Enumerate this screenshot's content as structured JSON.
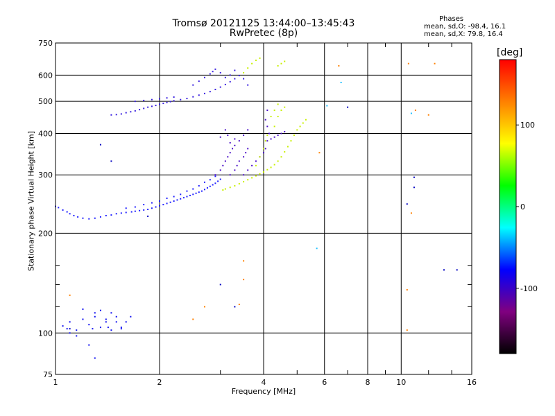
{
  "chart_data": {
    "type": "scatter",
    "title": "Tromsø 20121125 13:44:00–13:45:43",
    "subtitle": "RwPretec (8p)",
    "xlabel": "Frequency [MHz]",
    "ylabel": "Stationary phase Virtual Height [km]",
    "x_scale": "log",
    "y_scale": "log",
    "xlim": [
      1,
      16
    ],
    "ylim": [
      75,
      750
    ],
    "x_ticks": [
      1,
      2,
      4,
      6,
      8,
      10,
      16
    ],
    "x_tick_labels": [
      "1",
      "2",
      "4",
      "6",
      "8",
      "10",
      "16"
    ],
    "x_minor_ticks": [
      3,
      5,
      7,
      9,
      12,
      14
    ],
    "y_ticks": [
      75,
      100,
      200,
      300,
      400,
      500,
      600,
      750
    ],
    "y_tick_labels": [
      "75",
      "100",
      "200",
      "300",
      "400",
      "500",
      "600",
      "750"
    ],
    "y_minor_ticks": [
      120,
      140,
      160
    ],
    "grid": true,
    "phase_stats": {
      "title": "Phases",
      "o_line": "mean, sd,O: -98.4, 16.1",
      "x_line": "mean, sd,X:  79.8, 16.4"
    },
    "colorbar": {
      "unit": "[deg]",
      "ticks": [
        "100",
        "0",
        "-100"
      ],
      "tick_values": [
        100,
        0,
        -100
      ],
      "range": [
        -180,
        180
      ],
      "colors": [
        "#000000",
        "#800080",
        "#0000ff",
        "#00ffff",
        "#00ff00",
        "#ffff00",
        "#ff8000",
        "#ff0000"
      ]
    },
    "series": [
      {
        "color": "#2020ff",
        "points": [
          [
            1.0,
            241
          ],
          [
            1.02,
            239
          ],
          [
            1.05,
            235
          ],
          [
            1.08,
            232
          ],
          [
            1.1,
            229
          ],
          [
            1.13,
            226
          ],
          [
            1.16,
            224
          ],
          [
            1.2,
            222
          ],
          [
            1.25,
            221
          ],
          [
            1.3,
            222
          ],
          [
            1.35,
            224
          ],
          [
            1.4,
            226
          ],
          [
            1.45,
            227
          ],
          [
            1.5,
            229
          ],
          [
            1.55,
            230
          ],
          [
            1.6,
            231
          ],
          [
            1.66,
            232
          ],
          [
            1.7,
            233
          ],
          [
            1.75,
            234
          ],
          [
            1.8,
            235
          ],
          [
            1.85,
            236
          ],
          [
            1.9,
            238
          ],
          [
            1.95,
            240
          ],
          [
            2.0,
            242
          ],
          [
            2.05,
            244
          ],
          [
            2.1,
            246
          ],
          [
            2.15,
            248
          ],
          [
            2.2,
            250
          ],
          [
            2.25,
            252
          ],
          [
            2.3,
            254
          ],
          [
            2.35,
            256
          ],
          [
            2.4,
            258
          ],
          [
            2.45,
            260
          ],
          [
            2.5,
            262
          ],
          [
            2.55,
            264
          ],
          [
            2.6,
            266
          ],
          [
            2.65,
            268
          ],
          [
            2.7,
            271
          ],
          [
            2.75,
            274
          ],
          [
            2.8,
            277
          ],
          [
            2.85,
            280
          ],
          [
            2.9,
            283
          ],
          [
            2.95,
            287
          ],
          [
            3.0,
            291
          ],
          [
            2.1,
            255
          ],
          [
            2.2,
            258
          ],
          [
            2.3,
            262
          ],
          [
            2.4,
            268
          ],
          [
            2.5,
            272
          ],
          [
            2.6,
            278
          ],
          [
            2.7,
            285
          ],
          [
            2.8,
            290
          ],
          [
            2.9,
            297
          ],
          [
            1.6,
            238
          ],
          [
            1.7,
            240
          ],
          [
            1.8,
            244
          ],
          [
            1.9,
            247
          ],
          [
            2.0,
            250
          ]
        ]
      },
      {
        "color": "#3a20e0",
        "points": [
          [
            1.45,
            455
          ],
          [
            1.5,
            456
          ],
          [
            1.55,
            458
          ],
          [
            1.6,
            462
          ],
          [
            1.65,
            465
          ],
          [
            1.7,
            468
          ],
          [
            1.75,
            472
          ],
          [
            1.8,
            476
          ],
          [
            1.85,
            480
          ],
          [
            1.9,
            483
          ],
          [
            1.95,
            486
          ],
          [
            2.0,
            490
          ],
          [
            2.05,
            493
          ],
          [
            2.1,
            496
          ],
          [
            2.15,
            499
          ],
          [
            2.2,
            502
          ],
          [
            2.3,
            506
          ],
          [
            2.4,
            510
          ],
          [
            2.5,
            516
          ],
          [
            2.6,
            522
          ],
          [
            2.7,
            528
          ],
          [
            2.8,
            535
          ],
          [
            2.9,
            543
          ],
          [
            3.0,
            552
          ],
          [
            3.1,
            562
          ],
          [
            3.2,
            573
          ],
          [
            3.3,
            585
          ],
          [
            3.4,
            598
          ],
          [
            2.5,
            560
          ],
          [
            2.6,
            575
          ],
          [
            2.7,
            590
          ],
          [
            2.8,
            605
          ],
          [
            2.85,
            615
          ],
          [
            2.9,
            625
          ],
          [
            3.0,
            610
          ],
          [
            3.1,
            590
          ],
          [
            3.2,
            600
          ],
          [
            3.3,
            620
          ],
          [
            3.5,
            585
          ],
          [
            3.6,
            560
          ],
          [
            1.7,
            500
          ],
          [
            1.8,
            503
          ],
          [
            1.9,
            506
          ],
          [
            2.0,
            509
          ],
          [
            2.1,
            512
          ],
          [
            2.2,
            515
          ]
        ]
      },
      {
        "color": "#4b10c8",
        "points": [
          [
            2.9,
            300
          ],
          [
            3.0,
            310
          ],
          [
            3.05,
            320
          ],
          [
            3.1,
            330
          ],
          [
            3.15,
            340
          ],
          [
            3.2,
            350
          ],
          [
            3.25,
            360
          ],
          [
            3.3,
            368
          ],
          [
            3.2,
            300
          ],
          [
            3.3,
            310
          ],
          [
            3.35,
            320
          ],
          [
            3.4,
            330
          ],
          [
            3.5,
            340
          ],
          [
            3.55,
            350
          ],
          [
            3.6,
            360
          ],
          [
            3.5,
            300
          ],
          [
            3.6,
            310
          ],
          [
            3.7,
            320
          ],
          [
            3.8,
            330
          ],
          [
            3.9,
            340
          ],
          [
            4.0,
            350
          ],
          [
            4.05,
            360
          ],
          [
            4.1,
            380
          ],
          [
            4.15,
            400
          ],
          [
            4.1,
            420
          ],
          [
            4.05,
            440
          ],
          [
            4.1,
            470
          ],
          [
            4.2,
            385
          ],
          [
            4.3,
            390
          ],
          [
            4.4,
            395
          ],
          [
            4.5,
            400
          ],
          [
            4.6,
            405
          ],
          [
            3.4,
            380
          ],
          [
            3.5,
            395
          ],
          [
            3.6,
            410
          ],
          [
            3.3,
            385
          ],
          [
            3.2,
            375
          ],
          [
            3.15,
            395
          ],
          [
            3.1,
            410
          ],
          [
            3.0,
            390
          ]
        ]
      },
      {
        "color": "#c8f000",
        "points": [
          [
            3.05,
            270
          ],
          [
            3.1,
            272
          ],
          [
            3.2,
            275
          ],
          [
            3.3,
            278
          ],
          [
            3.4,
            282
          ],
          [
            3.5,
            286
          ],
          [
            3.6,
            290
          ],
          [
            3.7,
            294
          ],
          [
            3.8,
            298
          ],
          [
            3.9,
            302
          ],
          [
            4.0,
            306
          ],
          [
            4.1,
            311
          ],
          [
            4.2,
            316
          ],
          [
            4.3,
            322
          ],
          [
            4.4,
            330
          ],
          [
            4.5,
            340
          ],
          [
            4.6,
            352
          ],
          [
            4.7,
            365
          ],
          [
            4.8,
            380
          ],
          [
            4.9,
            395
          ],
          [
            5.0,
            410
          ],
          [
            5.1,
            420
          ],
          [
            5.2,
            430
          ],
          [
            5.3,
            440
          ],
          [
            3.8,
            320
          ],
          [
            3.9,
            340
          ],
          [
            4.0,
            360
          ],
          [
            4.05,
            380
          ],
          [
            4.1,
            395
          ],
          [
            4.3,
            420
          ],
          [
            4.4,
            450
          ],
          [
            4.5,
            470
          ],
          [
            4.6,
            480
          ],
          [
            4.2,
            450
          ],
          [
            4.3,
            470
          ],
          [
            4.4,
            490
          ],
          [
            3.5,
            610
          ],
          [
            3.6,
            630
          ],
          [
            3.7,
            650
          ],
          [
            3.8,
            665
          ],
          [
            3.9,
            675
          ],
          [
            4.4,
            640
          ],
          [
            4.5,
            650
          ],
          [
            4.6,
            660
          ]
        ]
      },
      {
        "color": "#ff8000",
        "points": [
          [
            6.6,
            640
          ],
          [
            10.5,
            650
          ],
          [
            12.5,
            650
          ],
          [
            5.8,
            350
          ],
          [
            10.7,
            230
          ],
          [
            2.5,
            110
          ],
          [
            2.7,
            120
          ],
          [
            3.5,
            145
          ],
          [
            3.5,
            165
          ],
          [
            3.4,
            122
          ],
          [
            10.4,
            102
          ],
          [
            1.1,
            130
          ],
          [
            10.4,
            135
          ],
          [
            11.0,
            470
          ],
          [
            12.0,
            455
          ]
        ]
      },
      {
        "color": "#1010f0",
        "points": [
          [
            1.05,
            105
          ],
          [
            1.08,
            103
          ],
          [
            1.1,
            108
          ],
          [
            1.15,
            102
          ],
          [
            1.2,
            110
          ],
          [
            1.25,
            106
          ],
          [
            1.3,
            112
          ],
          [
            1.35,
            104
          ],
          [
            1.4,
            108
          ],
          [
            1.45,
            115
          ],
          [
            1.55,
            103
          ],
          [
            1.6,
            108
          ],
          [
            1.65,
            112
          ],
          [
            1.2,
            118
          ],
          [
            1.3,
            115
          ],
          [
            1.35,
            117
          ],
          [
            1.1,
            100
          ],
          [
            1.15,
            98
          ],
          [
            1.25,
            92
          ],
          [
            1.3,
            84
          ],
          [
            1.5,
            112
          ],
          [
            1.55,
            104
          ],
          [
            1.45,
            102
          ],
          [
            1.4,
            110
          ],
          [
            1.28,
            103
          ],
          [
            1.42,
            104
          ],
          [
            1.5,
            108
          ]
        ]
      },
      {
        "color": "#0000c0",
        "points": [
          [
            1.35,
            370
          ],
          [
            1.45,
            330
          ],
          [
            7.0,
            480
          ],
          [
            10.9,
            295
          ],
          [
            10.9,
            275
          ],
          [
            10.4,
            245
          ],
          [
            13.3,
            155
          ],
          [
            14.5,
            155
          ],
          [
            3.0,
            140
          ],
          [
            3.3,
            120
          ],
          [
            1.1,
            103
          ],
          [
            1.85,
            225
          ]
        ]
      },
      {
        "color": "#20c0ff",
        "points": [
          [
            6.7,
            570
          ],
          [
            5.7,
            180
          ],
          [
            6.1,
            485
          ],
          [
            10.7,
            460
          ]
        ]
      }
    ]
  }
}
